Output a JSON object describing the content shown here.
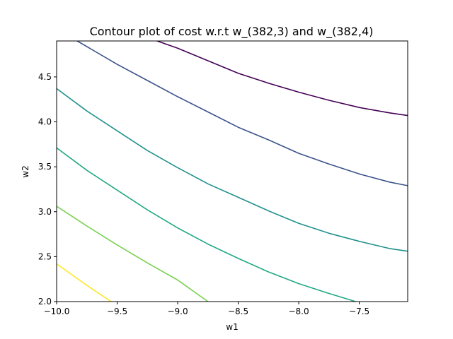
{
  "chart_data": {
    "type": "contour",
    "title": "Contour plot of cost w.r.t w_(382,3) and w_(382,4)",
    "xlabel": "w1",
    "ylabel": "w2",
    "xlim": [
      -10.0,
      -7.1
    ],
    "ylim": [
      2.0,
      4.9
    ],
    "xticks": [
      {
        "value": -10.0,
        "label": "−10.0"
      },
      {
        "value": -9.5,
        "label": "−9.5"
      },
      {
        "value": -9.0,
        "label": "−9.0"
      },
      {
        "value": -8.5,
        "label": "−8.5"
      },
      {
        "value": -8.0,
        "label": "−8.0"
      },
      {
        "value": -7.5,
        "label": "−7.5"
      }
    ],
    "yticks": [
      {
        "value": 2.0,
        "label": "2.0"
      },
      {
        "value": 2.5,
        "label": "2.5"
      },
      {
        "value": 3.0,
        "label": "3.0"
      },
      {
        "value": 3.5,
        "label": "3.5"
      },
      {
        "value": 4.0,
        "label": "4.0"
      },
      {
        "value": 4.5,
        "label": "4.5"
      }
    ],
    "grid": false,
    "contours": [
      {
        "color": "#440154",
        "points": [
          [
            -9.17,
            4.9
          ],
          [
            -9.0,
            4.82
          ],
          [
            -8.75,
            4.68
          ],
          [
            -8.5,
            4.54
          ],
          [
            -8.25,
            4.43
          ],
          [
            -8.0,
            4.33
          ],
          [
            -7.75,
            4.24
          ],
          [
            -7.5,
            4.16
          ],
          [
            -7.25,
            4.1
          ],
          [
            -7.1,
            4.07
          ]
        ]
      },
      {
        "color": "#3b528b",
        "points": [
          [
            -9.83,
            4.9
          ],
          [
            -9.5,
            4.64
          ],
          [
            -9.25,
            4.46
          ],
          [
            -9.0,
            4.28
          ],
          [
            -8.75,
            4.11
          ],
          [
            -8.5,
            3.94
          ],
          [
            -8.25,
            3.8
          ],
          [
            -8.0,
            3.65
          ],
          [
            -7.75,
            3.53
          ],
          [
            -7.5,
            3.42
          ],
          [
            -7.25,
            3.33
          ],
          [
            -7.1,
            3.29
          ]
        ]
      },
      {
        "color": "#21918c",
        "points": [
          [
            -10.0,
            4.37
          ],
          [
            -9.75,
            4.12
          ],
          [
            -9.5,
            3.9
          ],
          [
            -9.25,
            3.68
          ],
          [
            -9.0,
            3.49
          ],
          [
            -8.75,
            3.31
          ],
          [
            -8.5,
            3.16
          ],
          [
            -8.25,
            3.01
          ],
          [
            -8.0,
            2.87
          ],
          [
            -7.75,
            2.76
          ],
          [
            -7.5,
            2.67
          ],
          [
            -7.25,
            2.59
          ],
          [
            -7.1,
            2.56
          ]
        ]
      },
      {
        "color": "#22a884",
        "points": [
          [
            -10.0,
            3.71
          ],
          [
            -9.75,
            3.46
          ],
          [
            -9.5,
            3.24
          ],
          [
            -9.25,
            3.02
          ],
          [
            -9.0,
            2.82
          ],
          [
            -8.75,
            2.64
          ],
          [
            -8.5,
            2.48
          ],
          [
            -8.25,
            2.33
          ],
          [
            -8.0,
            2.2
          ],
          [
            -7.75,
            2.09
          ],
          [
            -7.53,
            2.0
          ]
        ]
      },
      {
        "color": "#7ad151",
        "points": [
          [
            -10.0,
            3.06
          ],
          [
            -9.75,
            2.84
          ],
          [
            -9.5,
            2.63
          ],
          [
            -9.25,
            2.43
          ],
          [
            -9.0,
            2.24
          ],
          [
            -8.75,
            2.0
          ]
        ]
      },
      {
        "color": "#fde725",
        "points": [
          [
            -10.0,
            2.42
          ],
          [
            -9.75,
            2.18
          ],
          [
            -9.55,
            2.0
          ]
        ]
      }
    ]
  }
}
